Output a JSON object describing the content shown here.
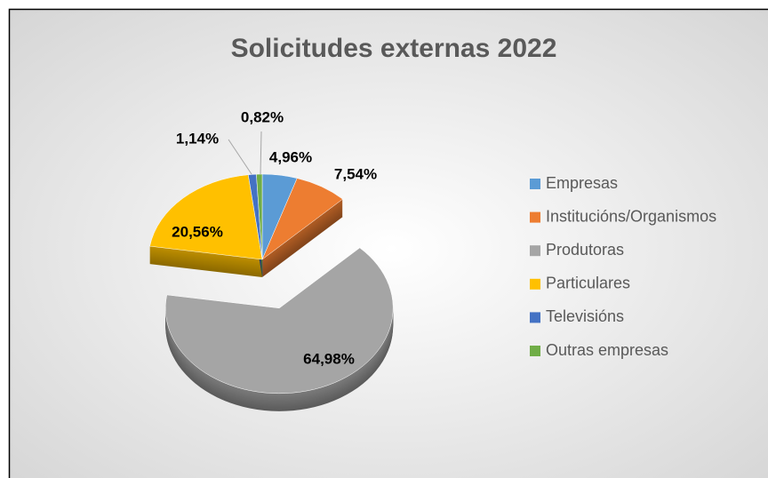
{
  "chart_data": {
    "type": "pie",
    "title": "Solicitudes externas 2022",
    "categories": [
      "Empresas",
      "Institucións/Organismos",
      "Produtoras",
      "Particulares",
      "Televisións",
      "Outras empresas"
    ],
    "values": [
      4.96,
      7.54,
      64.98,
      20.56,
      1.14,
      0.82
    ],
    "value_labels": [
      "4,96%",
      "7,54%",
      "64,98%",
      "20,56%",
      "1,14%",
      "0,82%"
    ],
    "colors": [
      "#5b9bd5",
      "#ed7d31",
      "#a5a5a5",
      "#ffc000",
      "#4472c4",
      "#70ad47"
    ],
    "exploded": [
      "Produtoras"
    ],
    "legend": "right"
  }
}
